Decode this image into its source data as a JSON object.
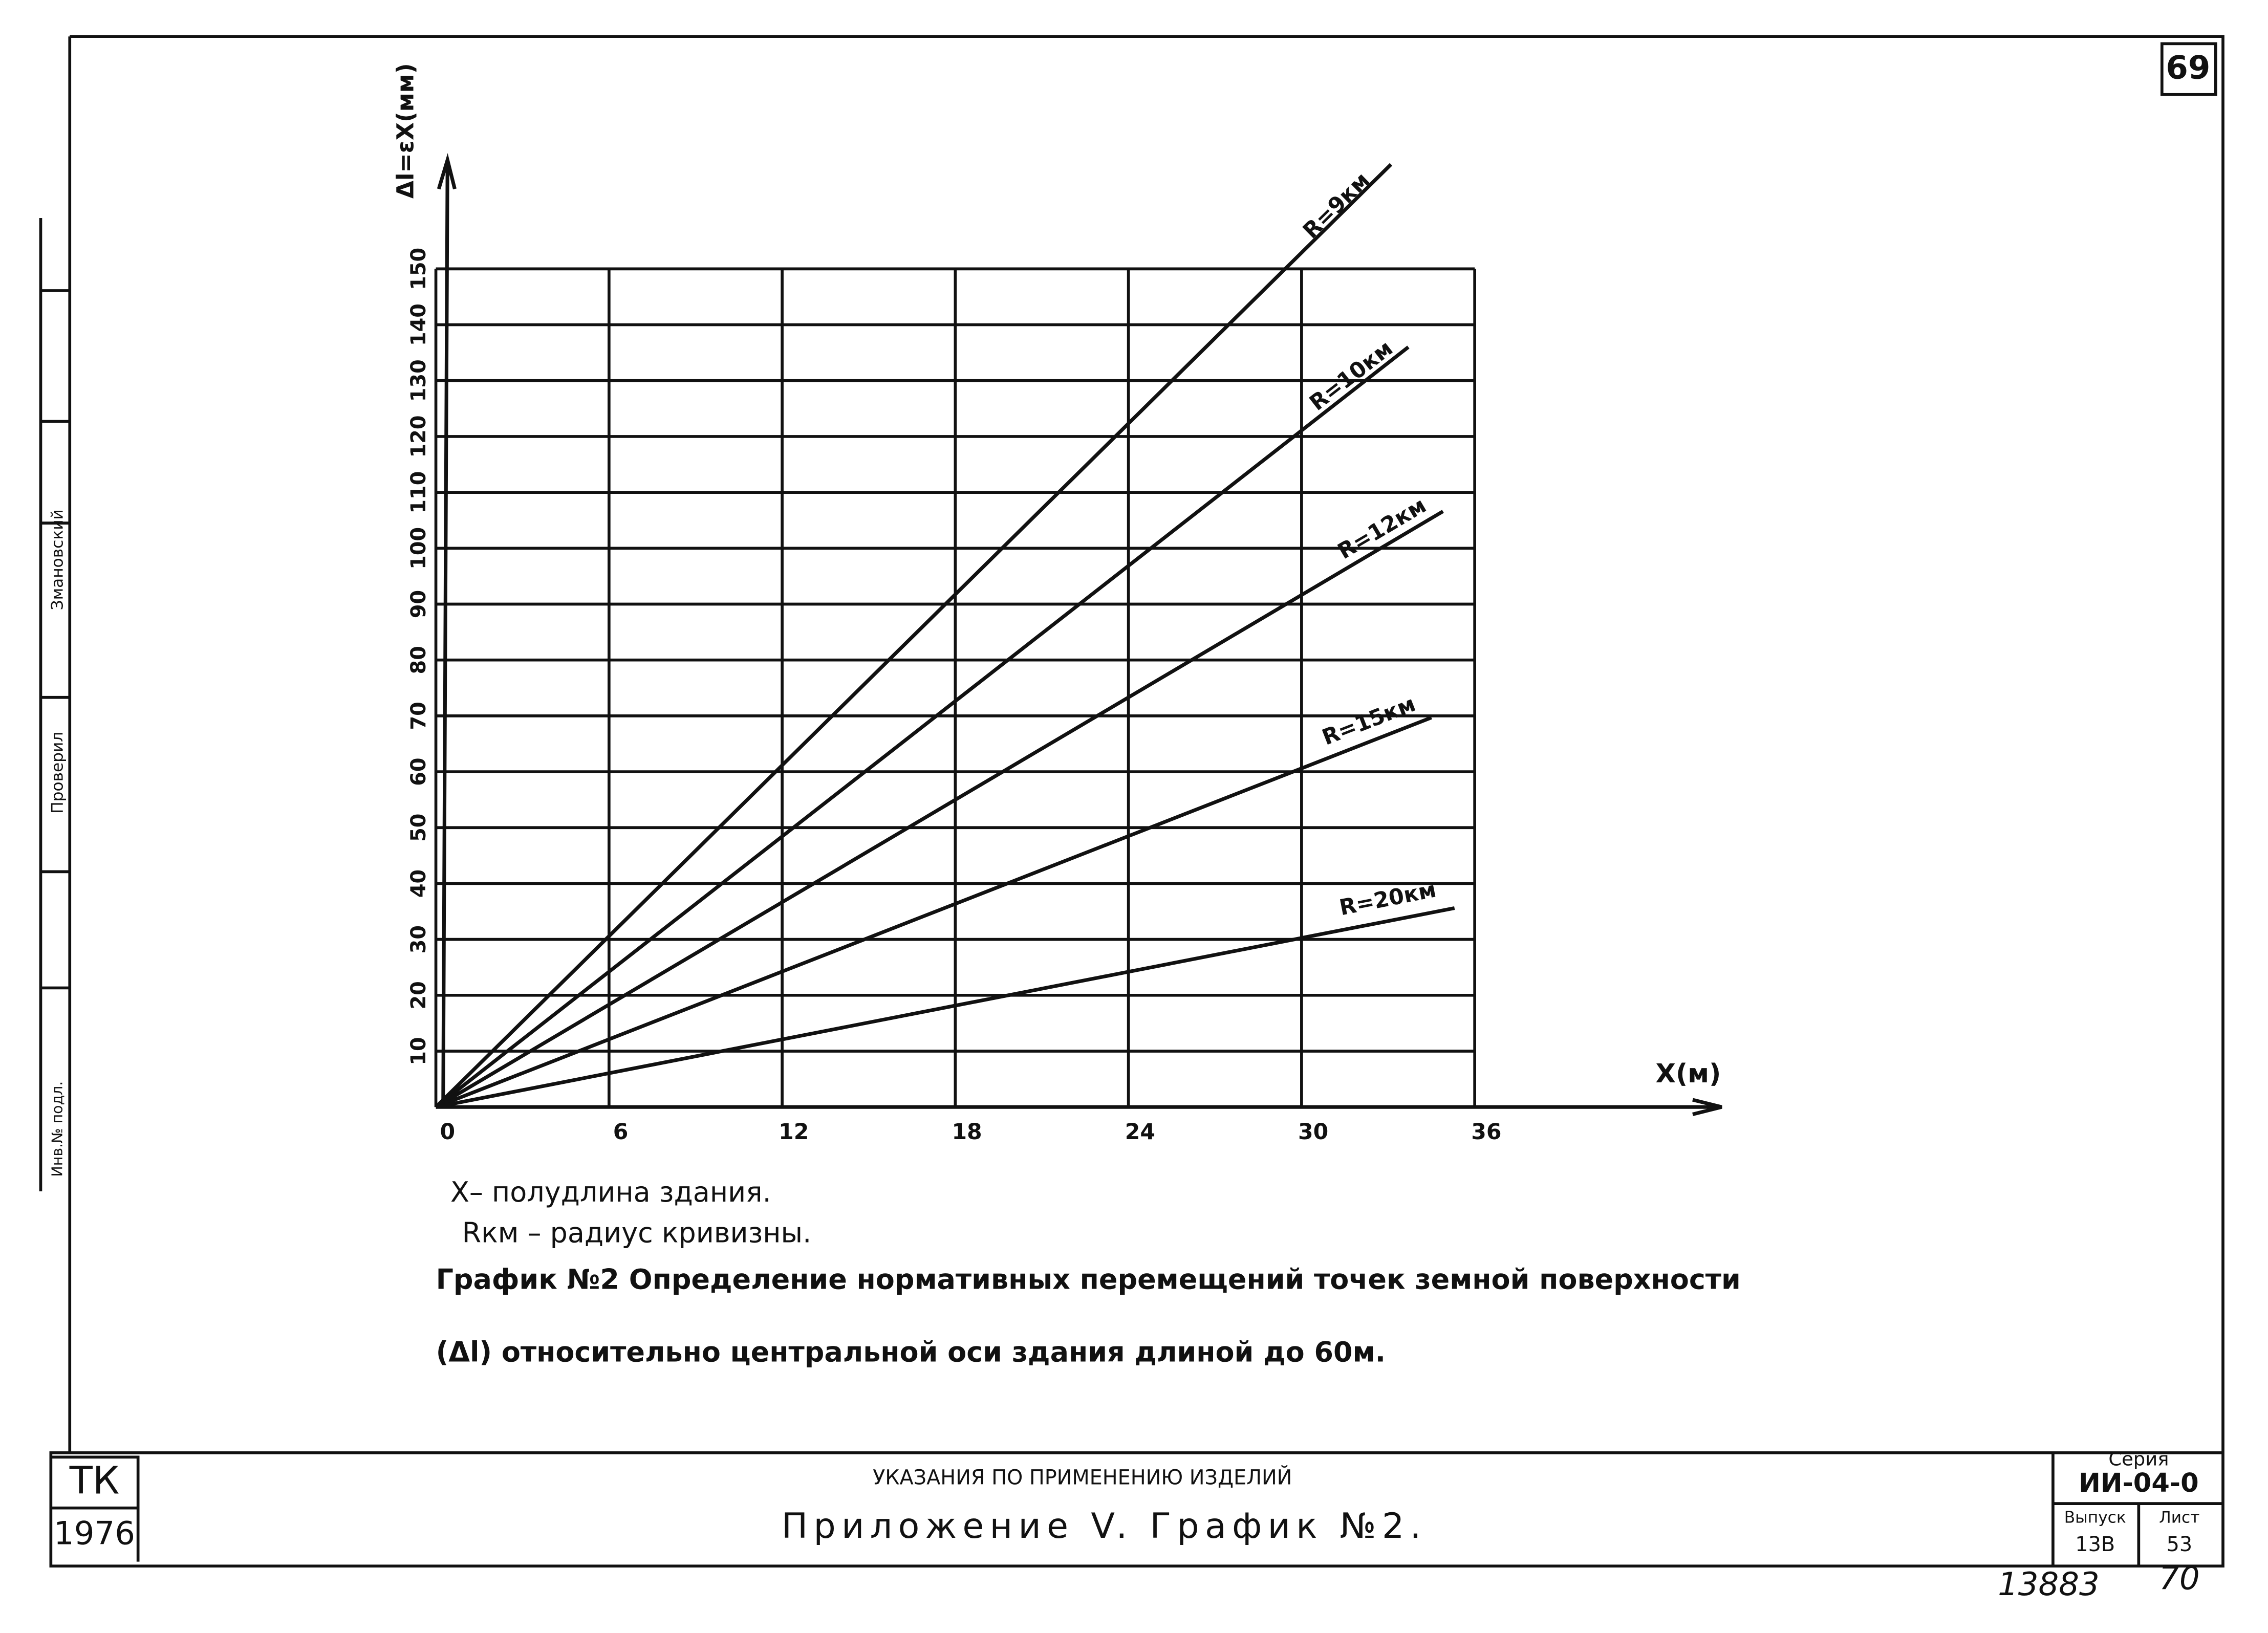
{
  "page_number": "69",
  "side_strip": [
    "Проверил",
    "Змановский",
    "Инв.№ подл."
  ],
  "chart_data": {
    "type": "line",
    "y_label": "Δl=εX(мм)",
    "x_label": "X(м)",
    "xlim": [
      0,
      36
    ],
    "ylim": [
      0,
      150
    ],
    "xticks": [
      0,
      6,
      12,
      18,
      24,
      30,
      36
    ],
    "yticks": [
      10,
      20,
      30,
      40,
      50,
      60,
      70,
      80,
      90,
      100,
      110,
      120,
      130,
      140,
      150
    ],
    "grid": true,
    "color": "#111111",
    "series": [
      {
        "name": "R=9км",
        "x": [
          0,
          33.1
        ],
        "values": [
          0,
          168.7
        ]
      },
      {
        "name": "R=10км",
        "x": [
          0,
          33.7
        ],
        "values": [
          0,
          136
        ]
      },
      {
        "name": "R=12км",
        "x": [
          0,
          34.9
        ],
        "values": [
          0,
          106.6
        ]
      },
      {
        "name": "R=15км",
        "x": [
          0,
          34.5
        ],
        "values": [
          0,
          69.7
        ]
      },
      {
        "name": "R=20км",
        "x": [
          0,
          35.3
        ],
        "values": [
          0,
          35.6
        ]
      }
    ]
  },
  "notes": [
    "X– полудлина здания.",
    "Rкм – радиус кривизны.",
    "График №2 Определение нормативных перемещений точек земной поверхности",
    "(Δl) относительно центральной оси здания длиной до 60м."
  ],
  "title_block": {
    "org": "ТК",
    "year": "1976",
    "heading": "УКАЗАНИЯ ПО ПРИМЕНЕНИЮ ИЗДЕЛИЙ",
    "title": "Приложение V. График №2.",
    "series_label": "Серия",
    "series": "ИИ-04-0",
    "issue_label": "Выпуск",
    "issue": "13В",
    "sheet_label": "Лист",
    "sheet": "53"
  },
  "stamp": [
    "13883",
    "70"
  ]
}
